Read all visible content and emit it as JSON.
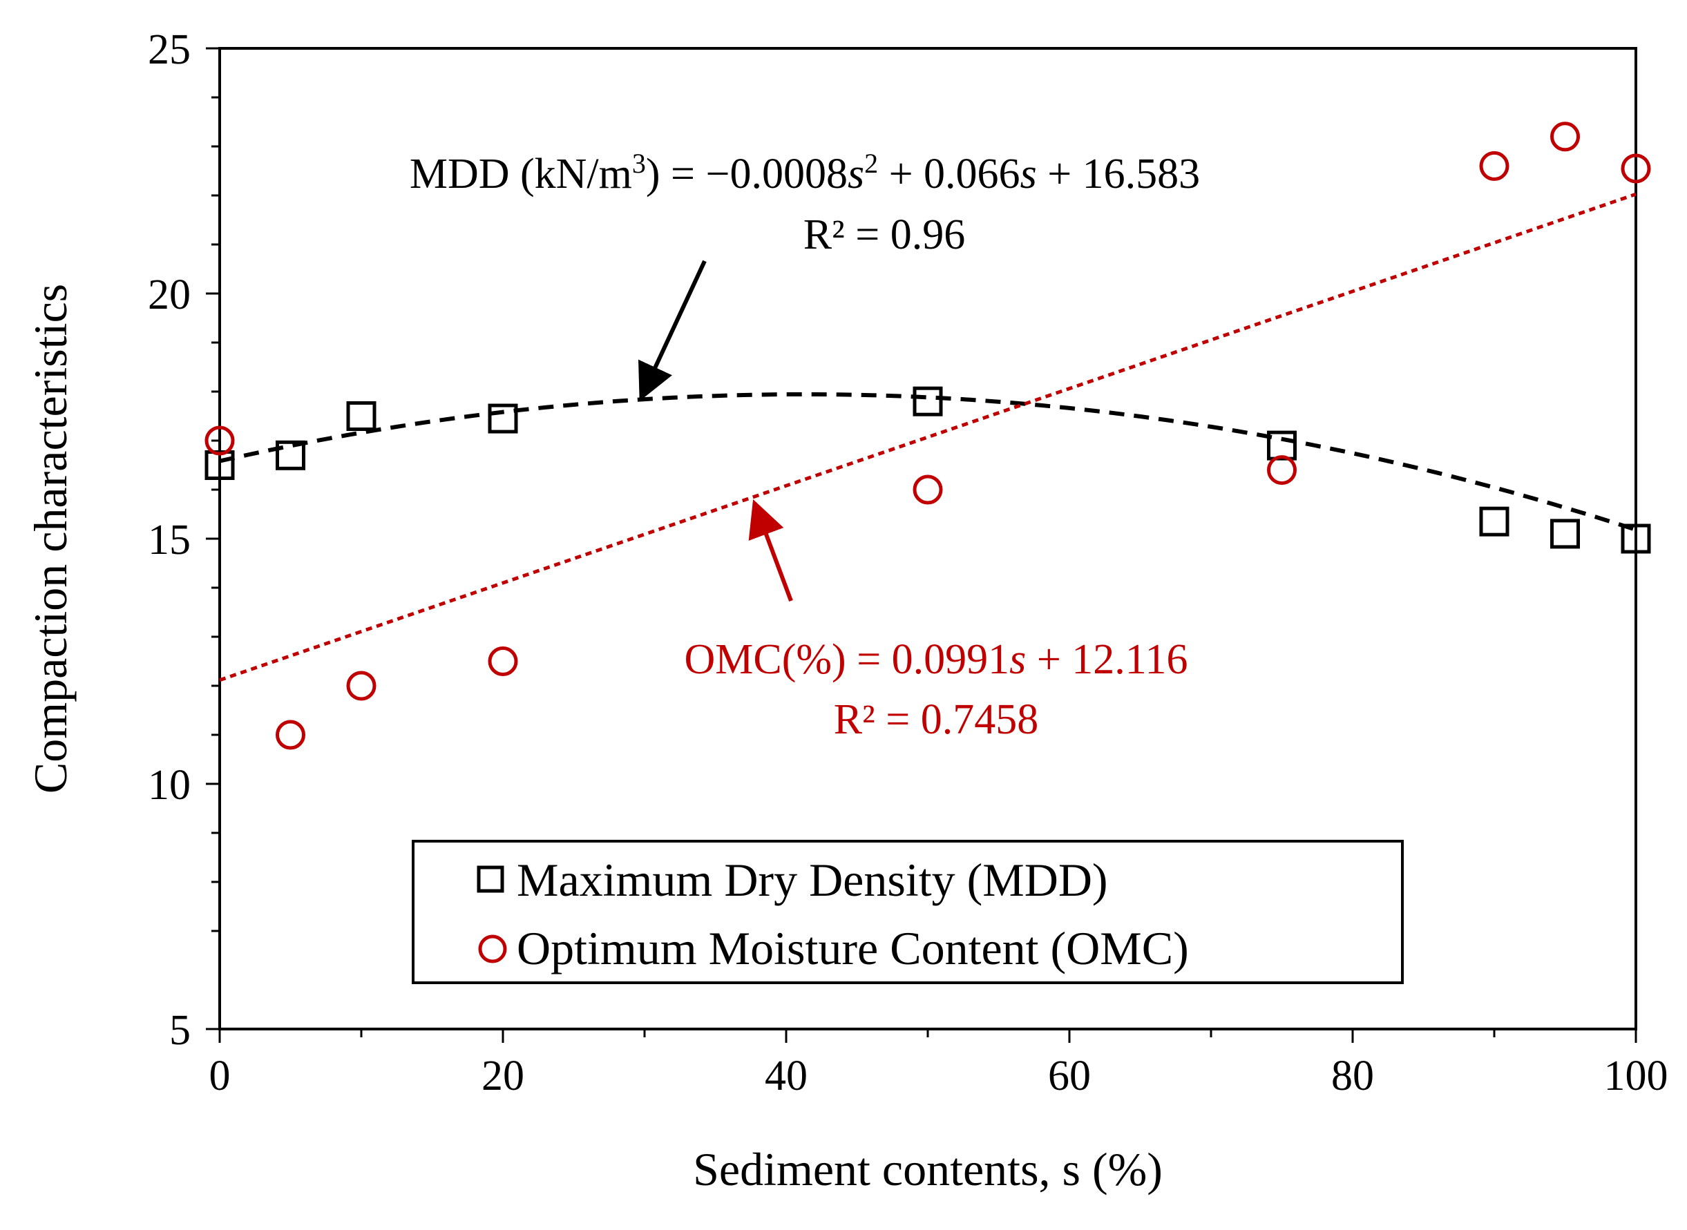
{
  "chart_data": {
    "type": "scatter",
    "title": "",
    "xlabel": "Sediment contents, s (%)",
    "ylabel": "Compaction characteristics",
    "xlim": [
      0,
      100
    ],
    "ylim": [
      5,
      25
    ],
    "x_ticks": [
      0,
      20,
      40,
      60,
      80,
      100
    ],
    "x_tick_labels": [
      "0",
      "20",
      "40",
      "60",
      "80",
      "100"
    ],
    "x_minor_ticks": [
      10,
      30,
      50,
      70,
      90
    ],
    "y_ticks": [
      5,
      10,
      15,
      20,
      25
    ],
    "y_tick_labels": [
      "5",
      "10",
      "15",
      "20",
      "25"
    ],
    "y_minor_ticks": [
      7,
      8,
      9,
      11,
      12,
      13,
      14,
      16,
      17,
      18,
      19,
      21,
      22,
      23,
      24
    ],
    "grid": false,
    "legend_position": "bottom-center",
    "series": [
      {
        "name": "Maximum Dry Density (MDD)",
        "marker": "square",
        "color": "#000000",
        "x": [
          0,
          5,
          10,
          20,
          50,
          75,
          90,
          95,
          100
        ],
        "values": [
          16.5,
          16.7,
          17.5,
          17.45,
          17.8,
          16.9,
          15.35,
          15.1,
          15.0
        ],
        "trendline": {
          "kind": "polynomial-2",
          "coefficients": [
            -0.0008,
            0.066,
            16.583
          ],
          "style": "dashed",
          "color": "#000000",
          "equation_prefix": "MDD (kN/m",
          "equation_sup1": "3",
          "equation_mid": ") = −0.0008",
          "equation_var1": "s",
          "equation_sup2": "2",
          "equation_mid2": " + 0.066",
          "equation_var2": "s",
          "equation_tail": " + 16.583",
          "r2_label": "R² = 0.96"
        }
      },
      {
        "name": "Optimum Moisture Content (OMC)",
        "marker": "circle",
        "color": "#c00000",
        "x": [
          0,
          5,
          10,
          20,
          50,
          75,
          90,
          95,
          100
        ],
        "values": [
          17.0,
          11.0,
          12.0,
          12.5,
          16.0,
          16.4,
          22.6,
          23.2,
          22.55
        ],
        "trendline": {
          "kind": "linear",
          "coefficients": [
            0.0991,
            12.116
          ],
          "style": "dotted",
          "color": "#c00000",
          "equation_prefix": "OMC(%) = 0.0991",
          "equation_var": "s",
          "equation_tail": " + 12.116",
          "r2_label": "R² = 0.7458"
        }
      }
    ]
  },
  "colors": {
    "axis": "#000000",
    "mdd": "#000000",
    "omc": "#c00000"
  }
}
